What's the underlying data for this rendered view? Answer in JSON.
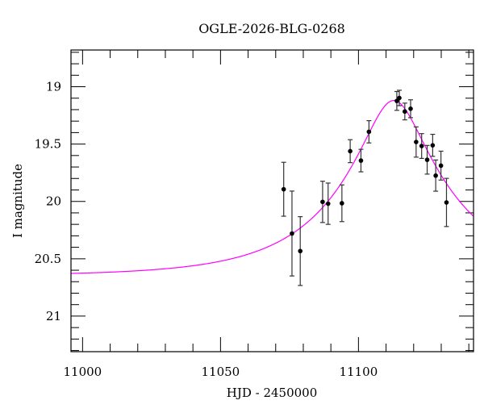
{
  "chart_data": {
    "type": "scatter",
    "title": "OGLE-2026-BLG-0268",
    "xlabel": "HJD - 2450000",
    "ylabel": "I magnitude",
    "xlim": [
      10995.8,
      11141.7
    ],
    "ylim": [
      21.31,
      18.68
    ],
    "y_inverted": true,
    "x_ticks": [
      11000,
      11050,
      11100
    ],
    "y_ticks": [
      19,
      19.5,
      20,
      20.5,
      21
    ],
    "x_tick_labels": [
      "11000",
      "11050",
      "11100"
    ],
    "y_tick_labels": [
      "19",
      "19.5",
      "20",
      "20.5",
      "21"
    ],
    "grid": false,
    "colors": {
      "points": "#000000",
      "model": "#ff00ff"
    },
    "points": [
      {
        "x": 11072.9,
        "y": 19.894,
        "err": 0.235
      },
      {
        "x": 11075.9,
        "y": 20.28,
        "err": 0.37
      },
      {
        "x": 11078.9,
        "y": 20.433,
        "err": 0.3
      },
      {
        "x": 11087.0,
        "y": 20.004,
        "err": 0.18
      },
      {
        "x": 11089.0,
        "y": 20.02,
        "err": 0.18
      },
      {
        "x": 11094.0,
        "y": 20.016,
        "err": 0.16
      },
      {
        "x": 11097.0,
        "y": 19.562,
        "err": 0.1
      },
      {
        "x": 11100.9,
        "y": 19.644,
        "err": 0.098
      },
      {
        "x": 11103.8,
        "y": 19.393,
        "err": 0.097
      },
      {
        "x": 11113.9,
        "y": 19.124,
        "err": 0.082
      },
      {
        "x": 11114.8,
        "y": 19.098,
        "err": 0.067
      },
      {
        "x": 11116.8,
        "y": 19.216,
        "err": 0.073
      },
      {
        "x": 11118.9,
        "y": 19.192,
        "err": 0.078
      },
      {
        "x": 11120.9,
        "y": 19.482,
        "err": 0.132
      },
      {
        "x": 11122.9,
        "y": 19.517,
        "err": 0.108
      },
      {
        "x": 11124.9,
        "y": 19.637,
        "err": 0.125
      },
      {
        "x": 11126.9,
        "y": 19.511,
        "err": 0.096
      },
      {
        "x": 11128.0,
        "y": 19.775,
        "err": 0.136
      },
      {
        "x": 11129.9,
        "y": 19.688,
        "err": 0.126
      },
      {
        "x": 11131.9,
        "y": 20.009,
        "err": 0.21
      }
    ],
    "model": {
      "type": "paczynski",
      "t0": 11112.8,
      "u0": 0.25,
      "tE": 41.5,
      "baseline_mag": 20.65
    }
  }
}
